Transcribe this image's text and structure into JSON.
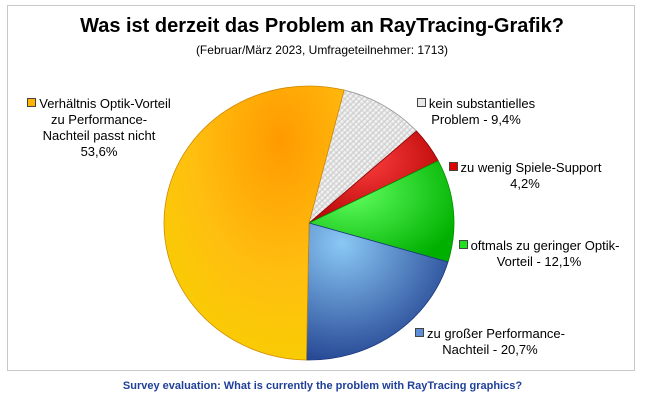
{
  "chart_data": {
    "type": "pie",
    "title": "Was ist derzeit das Problem an RayTracing-Grafik?",
    "subtitle": "(Februar/März 2023, Umfrageteilnehmer: 1713)",
    "slices": [
      {
        "label_lines": [
          "kein substantielles",
          "Problem - 9,4%"
        ],
        "value": 9.4,
        "color": "#e8e8e8"
      },
      {
        "label_lines": [
          "zu wenig Spiele-Support",
          "4,2%"
        ],
        "value": 4.2,
        "color": "#e00000"
      },
      {
        "label_lines": [
          "oftmals zu geringer Optik-",
          "Vorteil - 12,1%"
        ],
        "value": 12.1,
        "color": "#1ee01e"
      },
      {
        "label_lines": [
          "zu großer Performance-",
          "Nachteil - 20,7%"
        ],
        "value": 20.7,
        "color": "#5f8ed6"
      },
      {
        "label_lines": [
          "Verhältnis Optik-Vorteil",
          "zu Performance-",
          "Nachteil passt nicht",
          "53,6%"
        ],
        "value": 53.6,
        "color": "#ffb400"
      }
    ]
  },
  "caption": "Survey evaluation: What is currently the problem with RayTracing graphics?"
}
